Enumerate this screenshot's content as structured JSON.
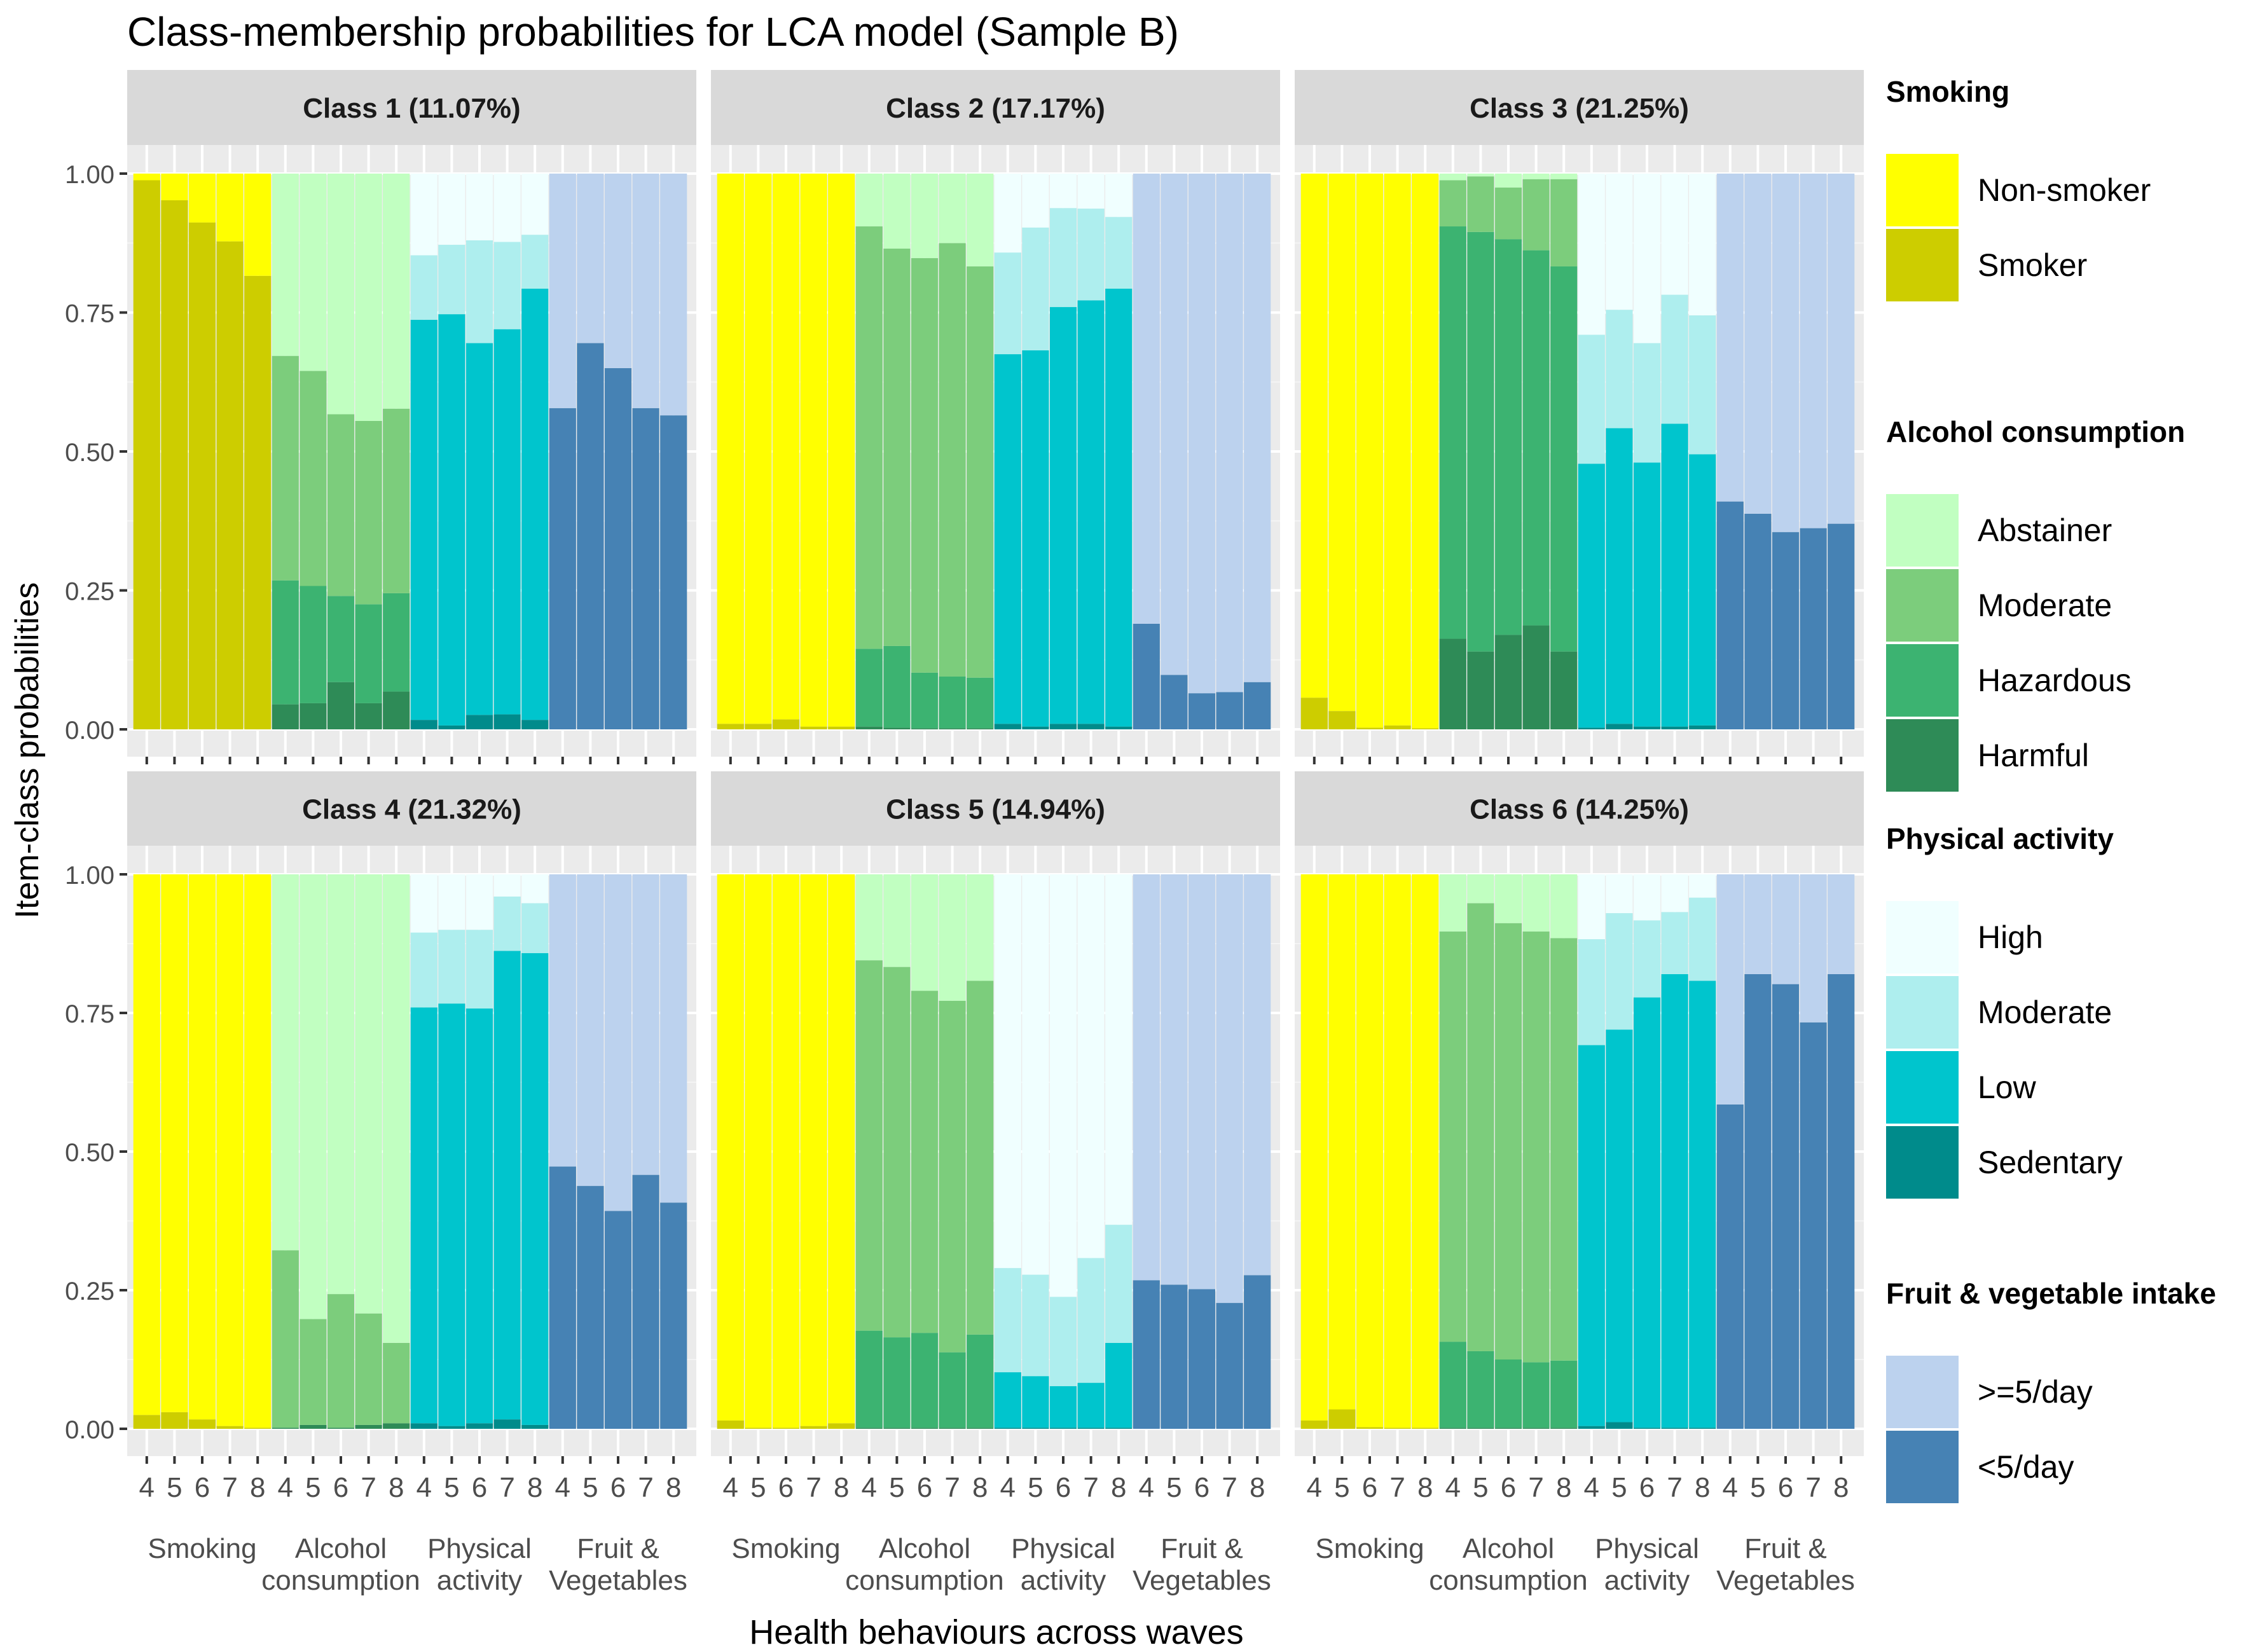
{
  "chart_data": {
    "type": "bar",
    "stacked": true,
    "title": "Class-membership probabilities for LCA model (Sample B)",
    "xlabel": "Health behaviours across waves",
    "ylabel": "Item-class probabilities",
    "ylim": [
      0,
      1
    ],
    "yticks": [
      "0.00",
      "0.25",
      "0.50",
      "0.75",
      "1.00"
    ],
    "waves": [
      "4",
      "5",
      "6",
      "7",
      "8"
    ],
    "groups": [
      {
        "key": "smoking",
        "label_lines": [
          "Smoking"
        ]
      },
      {
        "key": "alcohol",
        "label_lines": [
          "Alcohol",
          "consumption"
        ]
      },
      {
        "key": "activity",
        "label_lines": [
          "Physical",
          "activity"
        ]
      },
      {
        "key": "fruit",
        "label_lines": [
          "Fruit &",
          "Vegetables"
        ]
      }
    ],
    "legend": [
      {
        "key": "smoking",
        "title": "Smoking",
        "items": [
          {
            "label": "Non-smoker",
            "color": "#ffff00"
          },
          {
            "label": "Smoker",
            "color": "#cdcd00"
          }
        ]
      },
      {
        "key": "alcohol",
        "title": "Alcohol consumption",
        "items": [
          {
            "label": "Abstainer",
            "color": "#c1ffc1"
          },
          {
            "label": "Moderate",
            "color": "#7ccd7c"
          },
          {
            "label": "Hazardous",
            "color": "#3cb371"
          },
          {
            "label": "Harmful",
            "color": "#2e8b57"
          }
        ]
      },
      {
        "key": "activity",
        "title": "Physical activity",
        "items": [
          {
            "label": "High",
            "color": "#f0ffff"
          },
          {
            "label": "Moderate",
            "color": "#aeeeee"
          },
          {
            "label": "Low",
            "color": "#00c5cd"
          },
          {
            "label": "Sedentary",
            "color": "#008b8b"
          }
        ]
      },
      {
        "key": "fruit",
        "title": "Fruit & vegetable intake",
        "items": [
          {
            "label": ">=5/day",
            "color": "#bcd2ee"
          },
          {
            "label": "<5/day",
            "color": "#4682b4"
          }
        ]
      }
    ],
    "panels": [
      {
        "title": "Class 1 (11.07%)",
        "smoking": [
          0.988,
          0.952,
          0.912,
          0.878,
          0.816
        ],
        "alcohol": {
          "harmful": [
            0.045,
            0.047,
            0.085,
            0.047,
            0.068
          ],
          "hazardous": [
            0.268,
            0.258,
            0.24,
            0.225,
            0.245
          ],
          "moderate": [
            0.672,
            0.645,
            0.567,
            0.555,
            0.577
          ]
        },
        "activity": {
          "sedentary": [
            0.017,
            0.007,
            0.026,
            0.027,
            0.017
          ],
          "low": [
            0.737,
            0.747,
            0.695,
            0.72,
            0.793
          ],
          "moderate": [
            0.853,
            0.872,
            0.88,
            0.877,
            0.89
          ]
        },
        "fruit": [
          0.578,
          0.695,
          0.65,
          0.578,
          0.565
        ]
      },
      {
        "title": "Class 2 (17.17%)",
        "smoking": [
          0.01,
          0.01,
          0.018,
          0.005,
          0.005
        ],
        "alcohol": {
          "harmful": [
            0.005,
            0.003,
            0.002,
            0.002,
            0.002
          ],
          "hazardous": [
            0.145,
            0.15,
            0.102,
            0.095,
            0.093
          ],
          "moderate": [
            0.905,
            0.865,
            0.848,
            0.875,
            0.833
          ]
        },
        "activity": {
          "sedentary": [
            0.01,
            0.005,
            0.01,
            0.01,
            0.005
          ],
          "low": [
            0.675,
            0.682,
            0.76,
            0.772,
            0.793
          ],
          "moderate": [
            0.858,
            0.903,
            0.938,
            0.937,
            0.922
          ]
        },
        "fruit": [
          0.19,
          0.098,
          0.065,
          0.067,
          0.085
        ]
      },
      {
        "title": "Class 3 (21.25%)",
        "smoking": [
          0.057,
          0.033,
          0.003,
          0.007,
          0.002
        ],
        "alcohol": {
          "harmful": [
            0.163,
            0.14,
            0.17,
            0.187,
            0.14
          ],
          "hazardous": [
            0.905,
            0.895,
            0.882,
            0.862,
            0.833
          ],
          "moderate": [
            0.988,
            0.995,
            0.975,
            0.99,
            0.99
          ]
        },
        "activity": {
          "sedentary": [
            0.003,
            0.01,
            0.005,
            0.005,
            0.007
          ],
          "low": [
            0.478,
            0.542,
            0.48,
            0.55,
            0.495
          ],
          "moderate": [
            0.71,
            0.755,
            0.695,
            0.782,
            0.745
          ]
        },
        "fruit": [
          0.41,
          0.388,
          0.355,
          0.362,
          0.37
        ]
      },
      {
        "title": "Class 4 (21.32%)",
        "smoking": [
          0.025,
          0.03,
          0.017,
          0.005,
          0.002
        ],
        "alcohol": {
          "harmful": [
            0.002,
            0.007,
            0.002,
            0.007,
            0.01
          ],
          "hazardous": [
            0.002,
            0.007,
            0.002,
            0.007,
            0.01
          ],
          "moderate": [
            0.322,
            0.198,
            0.243,
            0.208,
            0.155
          ]
        },
        "activity": {
          "sedentary": [
            0.01,
            0.005,
            0.01,
            0.017,
            0.007
          ],
          "low": [
            0.76,
            0.767,
            0.758,
            0.862,
            0.858
          ],
          "moderate": [
            0.895,
            0.9,
            0.9,
            0.96,
            0.948
          ]
        },
        "fruit": [
          0.473,
          0.438,
          0.393,
          0.458,
          0.408
        ]
      },
      {
        "title": "Class 5 (14.94%)",
        "smoking": [
          0.015,
          0.002,
          0.002,
          0.005,
          0.01
        ],
        "alcohol": {
          "harmful": [
            0.002,
            0.002,
            0.002,
            0.002,
            0.002
          ],
          "hazardous": [
            0.177,
            0.165,
            0.173,
            0.138,
            0.17
          ],
          "moderate": [
            0.845,
            0.833,
            0.79,
            0.772,
            0.808
          ]
        },
        "activity": {
          "sedentary": [
            0.002,
            0.002,
            0.002,
            0.002,
            0.002
          ],
          "low": [
            0.102,
            0.095,
            0.077,
            0.083,
            0.155
          ],
          "moderate": [
            0.29,
            0.278,
            0.238,
            0.308,
            0.368
          ]
        },
        "fruit": [
          0.268,
          0.26,
          0.252,
          0.227,
          0.277
        ]
      },
      {
        "title": "Class 6 (14.25%)",
        "smoking": [
          0.015,
          0.035,
          0.003,
          0.002,
          0.002
        ],
        "alcohol": {
          "harmful": [
            0.002,
            0.002,
            0.002,
            0.002,
            0.002
          ],
          "hazardous": [
            0.157,
            0.14,
            0.125,
            0.12,
            0.123
          ],
          "moderate": [
            0.897,
            0.948,
            0.912,
            0.897,
            0.885
          ]
        },
        "activity": {
          "sedentary": [
            0.005,
            0.012,
            0.002,
            0.002,
            0.002
          ],
          "low": [
            0.692,
            0.72,
            0.778,
            0.82,
            0.808
          ],
          "moderate": [
            0.883,
            0.93,
            0.917,
            0.932,
            0.958
          ]
        },
        "fruit": [
          0.585,
          0.82,
          0.802,
          0.733,
          0.82
        ]
      }
    ]
  }
}
